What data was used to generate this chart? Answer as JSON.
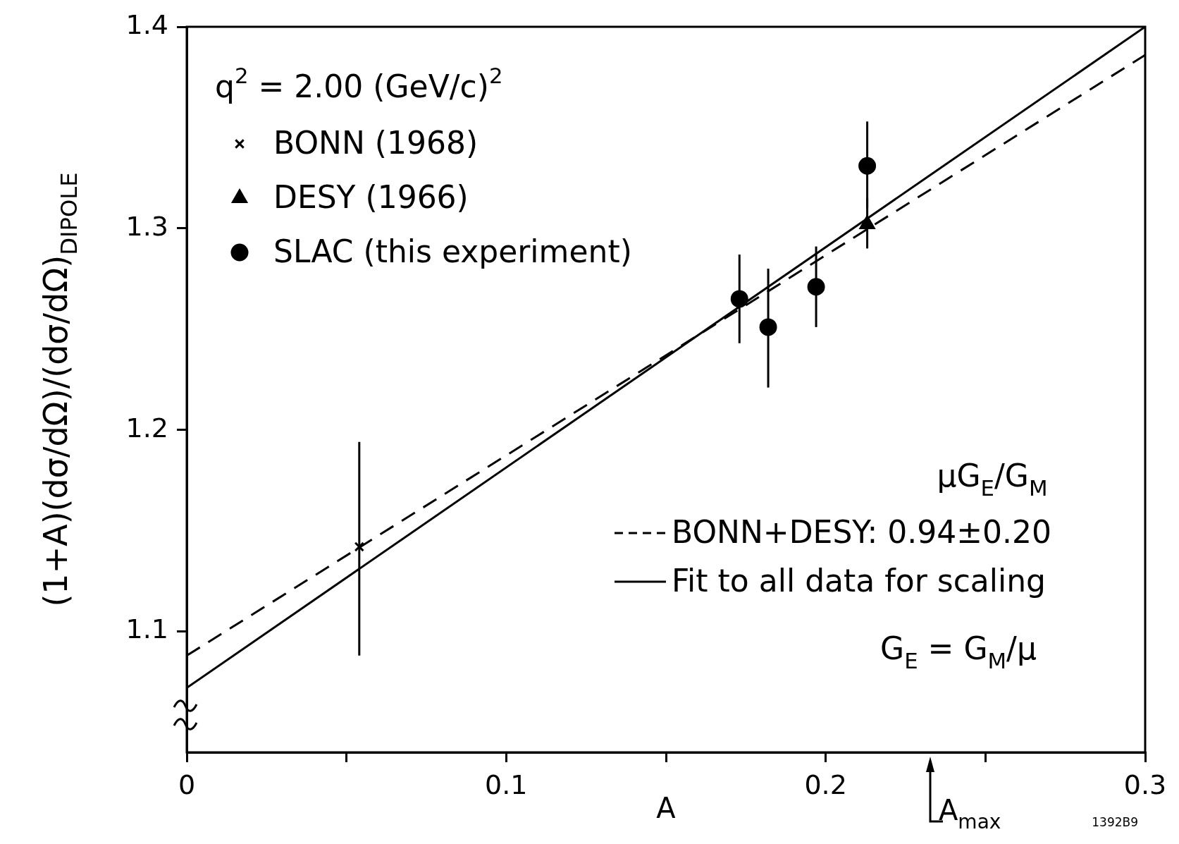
{
  "chart_data": {
    "type": "scatter",
    "xlabel": "A",
    "ylabel": "(1+A)(dσ/dΩ)/(dσ/dΩ)$_{DIPOLE}$",
    "legend_title": "μG$_{E}$/G$_{M}$",
    "xlim": [
      0,
      0.3
    ],
    "xticks": [
      0,
      {
        "value": 0.05,
        "label": null
      },
      0.1,
      {
        "value": 0.15,
        "label": null
      },
      0.2,
      {
        "value": 0.25,
        "label": null
      },
      0.3
    ],
    "ylim": [
      1.04,
      1.4
    ],
    "yticks": [
      1.1,
      1.2,
      1.3,
      1.4
    ],
    "legend": "top left",
    "grid": false,
    "series": [
      {
        "name": "BONN (1968)",
        "type": "scatter",
        "marker": "cross",
        "color": "#000000",
        "x": [
          0.054
        ],
        "values": [
          1.142
        ],
        "errors": [
          [
            1.088,
            1.194
          ]
        ]
      },
      {
        "name": "DESY (1966)",
        "type": "scatter",
        "marker": "triangle",
        "color": "#000000",
        "x": [
          0.213
        ],
        "values": [
          1.302
        ],
        "errors": [
          [
            1.29,
            1.315
          ]
        ]
      },
      {
        "name": "SLAC (this experiment)",
        "type": "scatter",
        "marker": "circle",
        "color": "#000000",
        "x": [
          0.173,
          0.182,
          0.197,
          0.213
        ],
        "values": [
          1.265,
          1.251,
          1.271,
          1.331
        ],
        "errors": [
          [
            1.243,
            1.287
          ],
          [
            1.221,
            1.28
          ],
          [
            1.251,
            1.291
          ],
          [
            1.31,
            1.353
          ]
        ]
      },
      {
        "name": "BONN+DESY: 0.94±0.20",
        "type": "line",
        "line_style": "dashed",
        "marker": "none",
        "color": "#000000",
        "x": [
          0,
          0.3
        ],
        "values": [
          1.088,
          1.386
        ]
      },
      {
        "name": "Fit to all data for scaling",
        "type": "line",
        "line_style": "solid",
        "marker": "none",
        "color": "#000000",
        "x": [
          0,
          0.3
        ],
        "values": [
          1.072,
          1.4
        ]
      }
    ],
    "annotations": [
      "q$^{2}$ = 2.00 (GeV/c)$^{2}$",
      "G$_{E}$ = G$_{M}$/μ",
      "A$_{max}$",
      "1392B9"
    ]
  }
}
